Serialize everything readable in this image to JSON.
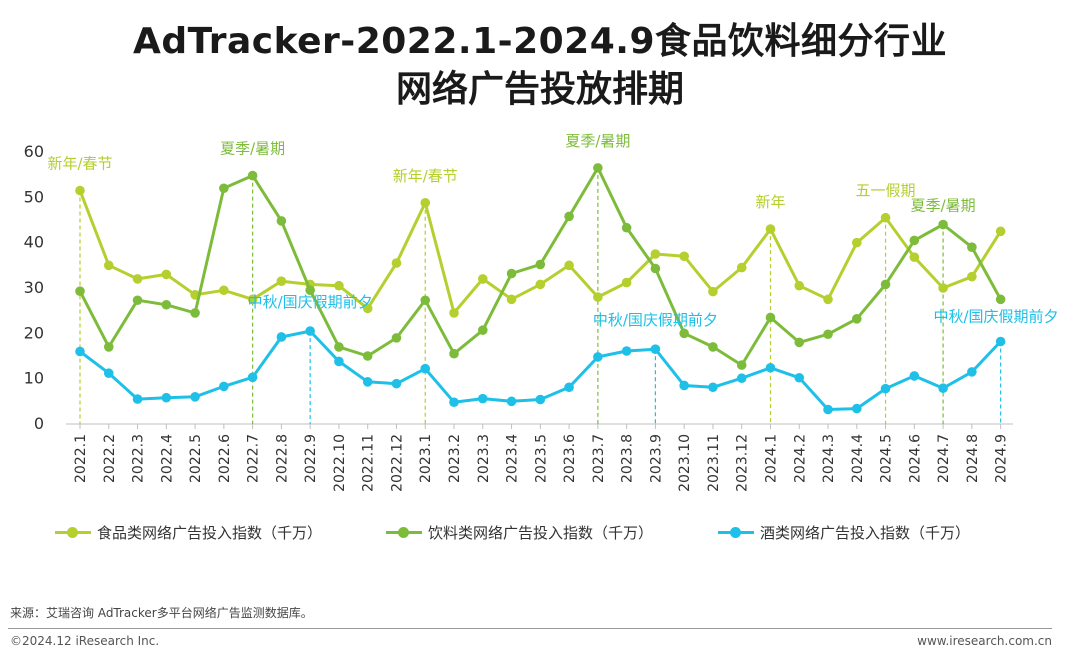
{
  "title_line1": "AdTracker-2022.1-2024.9食品饮料细分行业",
  "title_line2": "网络广告投放排期",
  "chart_data": {
    "type": "line",
    "categories": [
      "2022.1",
      "2022.2",
      "2022.3",
      "2022.4",
      "2022.5",
      "2022.6",
      "2022.7",
      "2022.8",
      "2022.9",
      "2022.10",
      "2022.11",
      "2022.12",
      "2023.1",
      "2023.2",
      "2023.3",
      "2023.4",
      "2023.5",
      "2023.6",
      "2023.7",
      "2023.8",
      "2023.9",
      "2023.10",
      "2023.11",
      "2023.12",
      "2024.1",
      "2024.2",
      "2024.3",
      "2024.4",
      "2024.5",
      "2024.6",
      "2024.7",
      "2024.8",
      "2024.9"
    ],
    "ylim": [
      0,
      60
    ],
    "yticks": [
      0,
      10,
      20,
      30,
      40,
      50,
      60
    ],
    "series": [
      {
        "name": "食品类网络广告投入指数（千万）",
        "color": "#b5cf2f",
        "values": [
          51.5,
          35,
          32,
          33,
          28.5,
          29.5,
          27.5,
          31.5,
          30.8,
          30.5,
          25.5,
          35.5,
          48.8,
          24.5,
          32,
          27.5,
          30.8,
          35,
          28,
          31.2,
          37.5,
          37,
          29.2,
          34.5,
          43,
          30.5,
          27.5,
          40,
          45.5,
          36.8,
          30,
          32.5,
          42.5
        ]
      },
      {
        "name": "饮料类网络广告投入指数（千万）",
        "color": "#7dbc3a",
        "values": [
          29.3,
          17,
          27.3,
          26.3,
          24.5,
          52,
          54.8,
          44.8,
          29.5,
          17,
          15,
          19,
          27.3,
          15.5,
          20.7,
          33.2,
          35.2,
          45.8,
          56.5,
          43.3,
          34.3,
          20,
          17,
          13,
          23.5,
          18,
          19.8,
          23.2,
          30.8,
          40.5,
          44,
          39,
          27.5
        ]
      },
      {
        "name": "酒类网络广告投入指数（千万）",
        "color": "#1ec0e8",
        "values": [
          16,
          11.2,
          5.5,
          5.8,
          6,
          8.3,
          10.3,
          19.2,
          20.5,
          13.8,
          9.3,
          8.9,
          12.2,
          4.8,
          5.6,
          5,
          5.4,
          8.1,
          14.8,
          16.1,
          16.5,
          8.5,
          8.1,
          10.1,
          12.4,
          10.2,
          3.2,
          3.4,
          7.8,
          10.6,
          7.9,
          11.5,
          18.2
        ]
      }
    ],
    "annotations": [
      {
        "text": "新年/春节",
        "index": 0,
        "series": 0,
        "kind": "top"
      },
      {
        "text": "夏季/暑期",
        "index": 6,
        "series": 1,
        "kind": "top"
      },
      {
        "text": "中秋/国庆假期前夕",
        "index": 8,
        "series": 2,
        "kind": "bottom"
      },
      {
        "text": "新年/春节",
        "index": 12,
        "series": 0,
        "kind": "top"
      },
      {
        "text": "夏季/暑期",
        "index": 18,
        "series": 1,
        "kind": "top"
      },
      {
        "text": "中秋/国庆假期前夕",
        "index": 20,
        "series": 2,
        "kind": "bottom"
      },
      {
        "text": "新年",
        "index": 24,
        "series": 0,
        "kind": "top"
      },
      {
        "text": "五一假期",
        "index": 28,
        "series": 0,
        "kind": "top"
      },
      {
        "text": "夏季/暑期",
        "index": 30,
        "series": 1,
        "kind": "top"
      },
      {
        "text": "中秋/国庆假期前夕",
        "index": 32,
        "series": 2,
        "kind": "bottom"
      }
    ]
  },
  "source": "来源：艾瑞咨询 AdTracker多平台网络广告监测数据库。",
  "copyright": "©2024.12 iResearch Inc.",
  "website": "www.iresearch.com.cn"
}
